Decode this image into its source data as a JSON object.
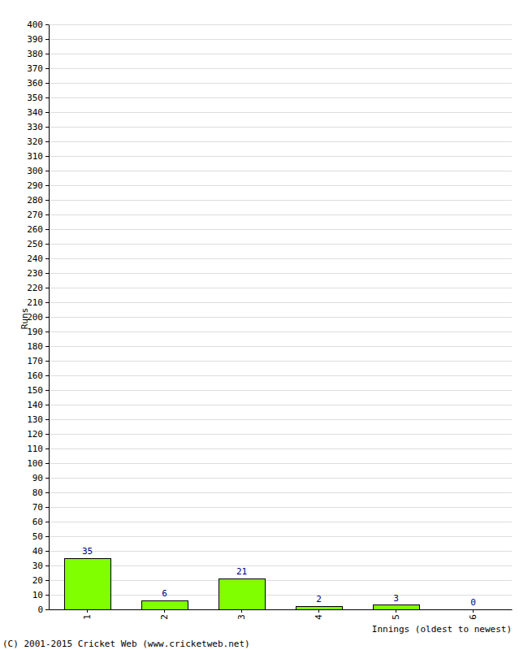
{
  "chart_data": {
    "type": "bar",
    "categories": [
      "1",
      "2",
      "3",
      "4",
      "5",
      "6"
    ],
    "values": [
      35,
      6,
      21,
      2,
      3,
      0
    ],
    "color": "#80ff00",
    "x_label": "Innings (oldest to newest)",
    "y_label": "Runs",
    "annotations": [
      "(C) 2001-2015 Cricket Web (www.cricketweb.net)"
    ],
    "ylim": [
      0,
      400
    ],
    "yticks": [
      0,
      10,
      20,
      30,
      40,
      50,
      60,
      70,
      80,
      90,
      100,
      110,
      120,
      130,
      140,
      150,
      160,
      170,
      180,
      190,
      200,
      210,
      220,
      230,
      240,
      250,
      260,
      270,
      280,
      290,
      300,
      310,
      320,
      330,
      340,
      350,
      360,
      370,
      380,
      390,
      400
    ],
    "grid": true,
    "data_labels": true
  }
}
